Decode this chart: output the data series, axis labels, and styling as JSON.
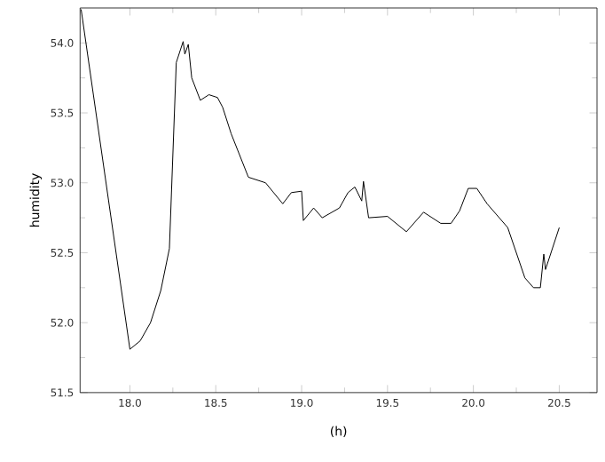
{
  "chart_data": {
    "type": "line",
    "xlabel": "(h)",
    "ylabel": "humidity",
    "x": [
      17.716,
      18.0,
      18.06,
      18.12,
      18.18,
      18.23,
      18.27,
      18.31,
      18.32,
      18.34,
      18.36,
      18.41,
      18.46,
      18.51,
      18.54,
      18.59,
      18.69,
      18.79,
      18.89,
      18.94,
      19.0,
      19.01,
      19.07,
      19.12,
      19.22,
      19.27,
      19.31,
      19.35,
      19.36,
      19.39,
      19.5,
      19.61,
      19.71,
      19.81,
      19.87,
      19.92,
      19.97,
      20.02,
      20.08,
      20.2,
      20.3,
      20.35,
      20.39,
      20.41,
      20.42,
      20.5
    ],
    "series": [
      {
        "color": "#000000",
        "values": [
          54.24,
          51.81,
          51.87,
          52.0,
          52.23,
          52.53,
          53.86,
          54.01,
          53.92,
          53.99,
          53.75,
          53.59,
          53.63,
          53.61,
          53.54,
          53.35,
          53.04,
          53.0,
          52.85,
          52.93,
          52.94,
          52.73,
          52.82,
          52.75,
          52.82,
          52.93,
          52.97,
          52.87,
          53.01,
          52.75,
          52.76,
          52.65,
          52.79,
          52.71,
          52.71,
          52.8,
          52.96,
          52.96,
          52.85,
          52.68,
          52.32,
          52.25,
          52.25,
          52.49,
          52.38,
          52.68
        ]
      }
    ],
    "xlim": [
      17.71,
      20.72
    ],
    "ylim": [
      51.5,
      54.25
    ],
    "xticks": [
      {
        "value": 18,
        "label": "18.0"
      },
      {
        "value": 18.5,
        "label": "18.5"
      },
      {
        "value": 19,
        "label": "19.0"
      },
      {
        "value": 19.5,
        "label": "19.5"
      },
      {
        "value": 20,
        "label": "20.0"
      },
      {
        "value": 20.5,
        "label": "20.5"
      }
    ],
    "yticks": [
      {
        "value": 51.5,
        "label": "51.5"
      },
      {
        "value": 52,
        "label": "52.0"
      },
      {
        "value": 52.5,
        "label": "52.5"
      },
      {
        "value": 53,
        "label": "53.0"
      },
      {
        "value": 53.5,
        "label": "53.5"
      },
      {
        "value": 54,
        "label": "54.0"
      }
    ],
    "grid": false,
    "marker": "none",
    "line_style": "solid"
  }
}
